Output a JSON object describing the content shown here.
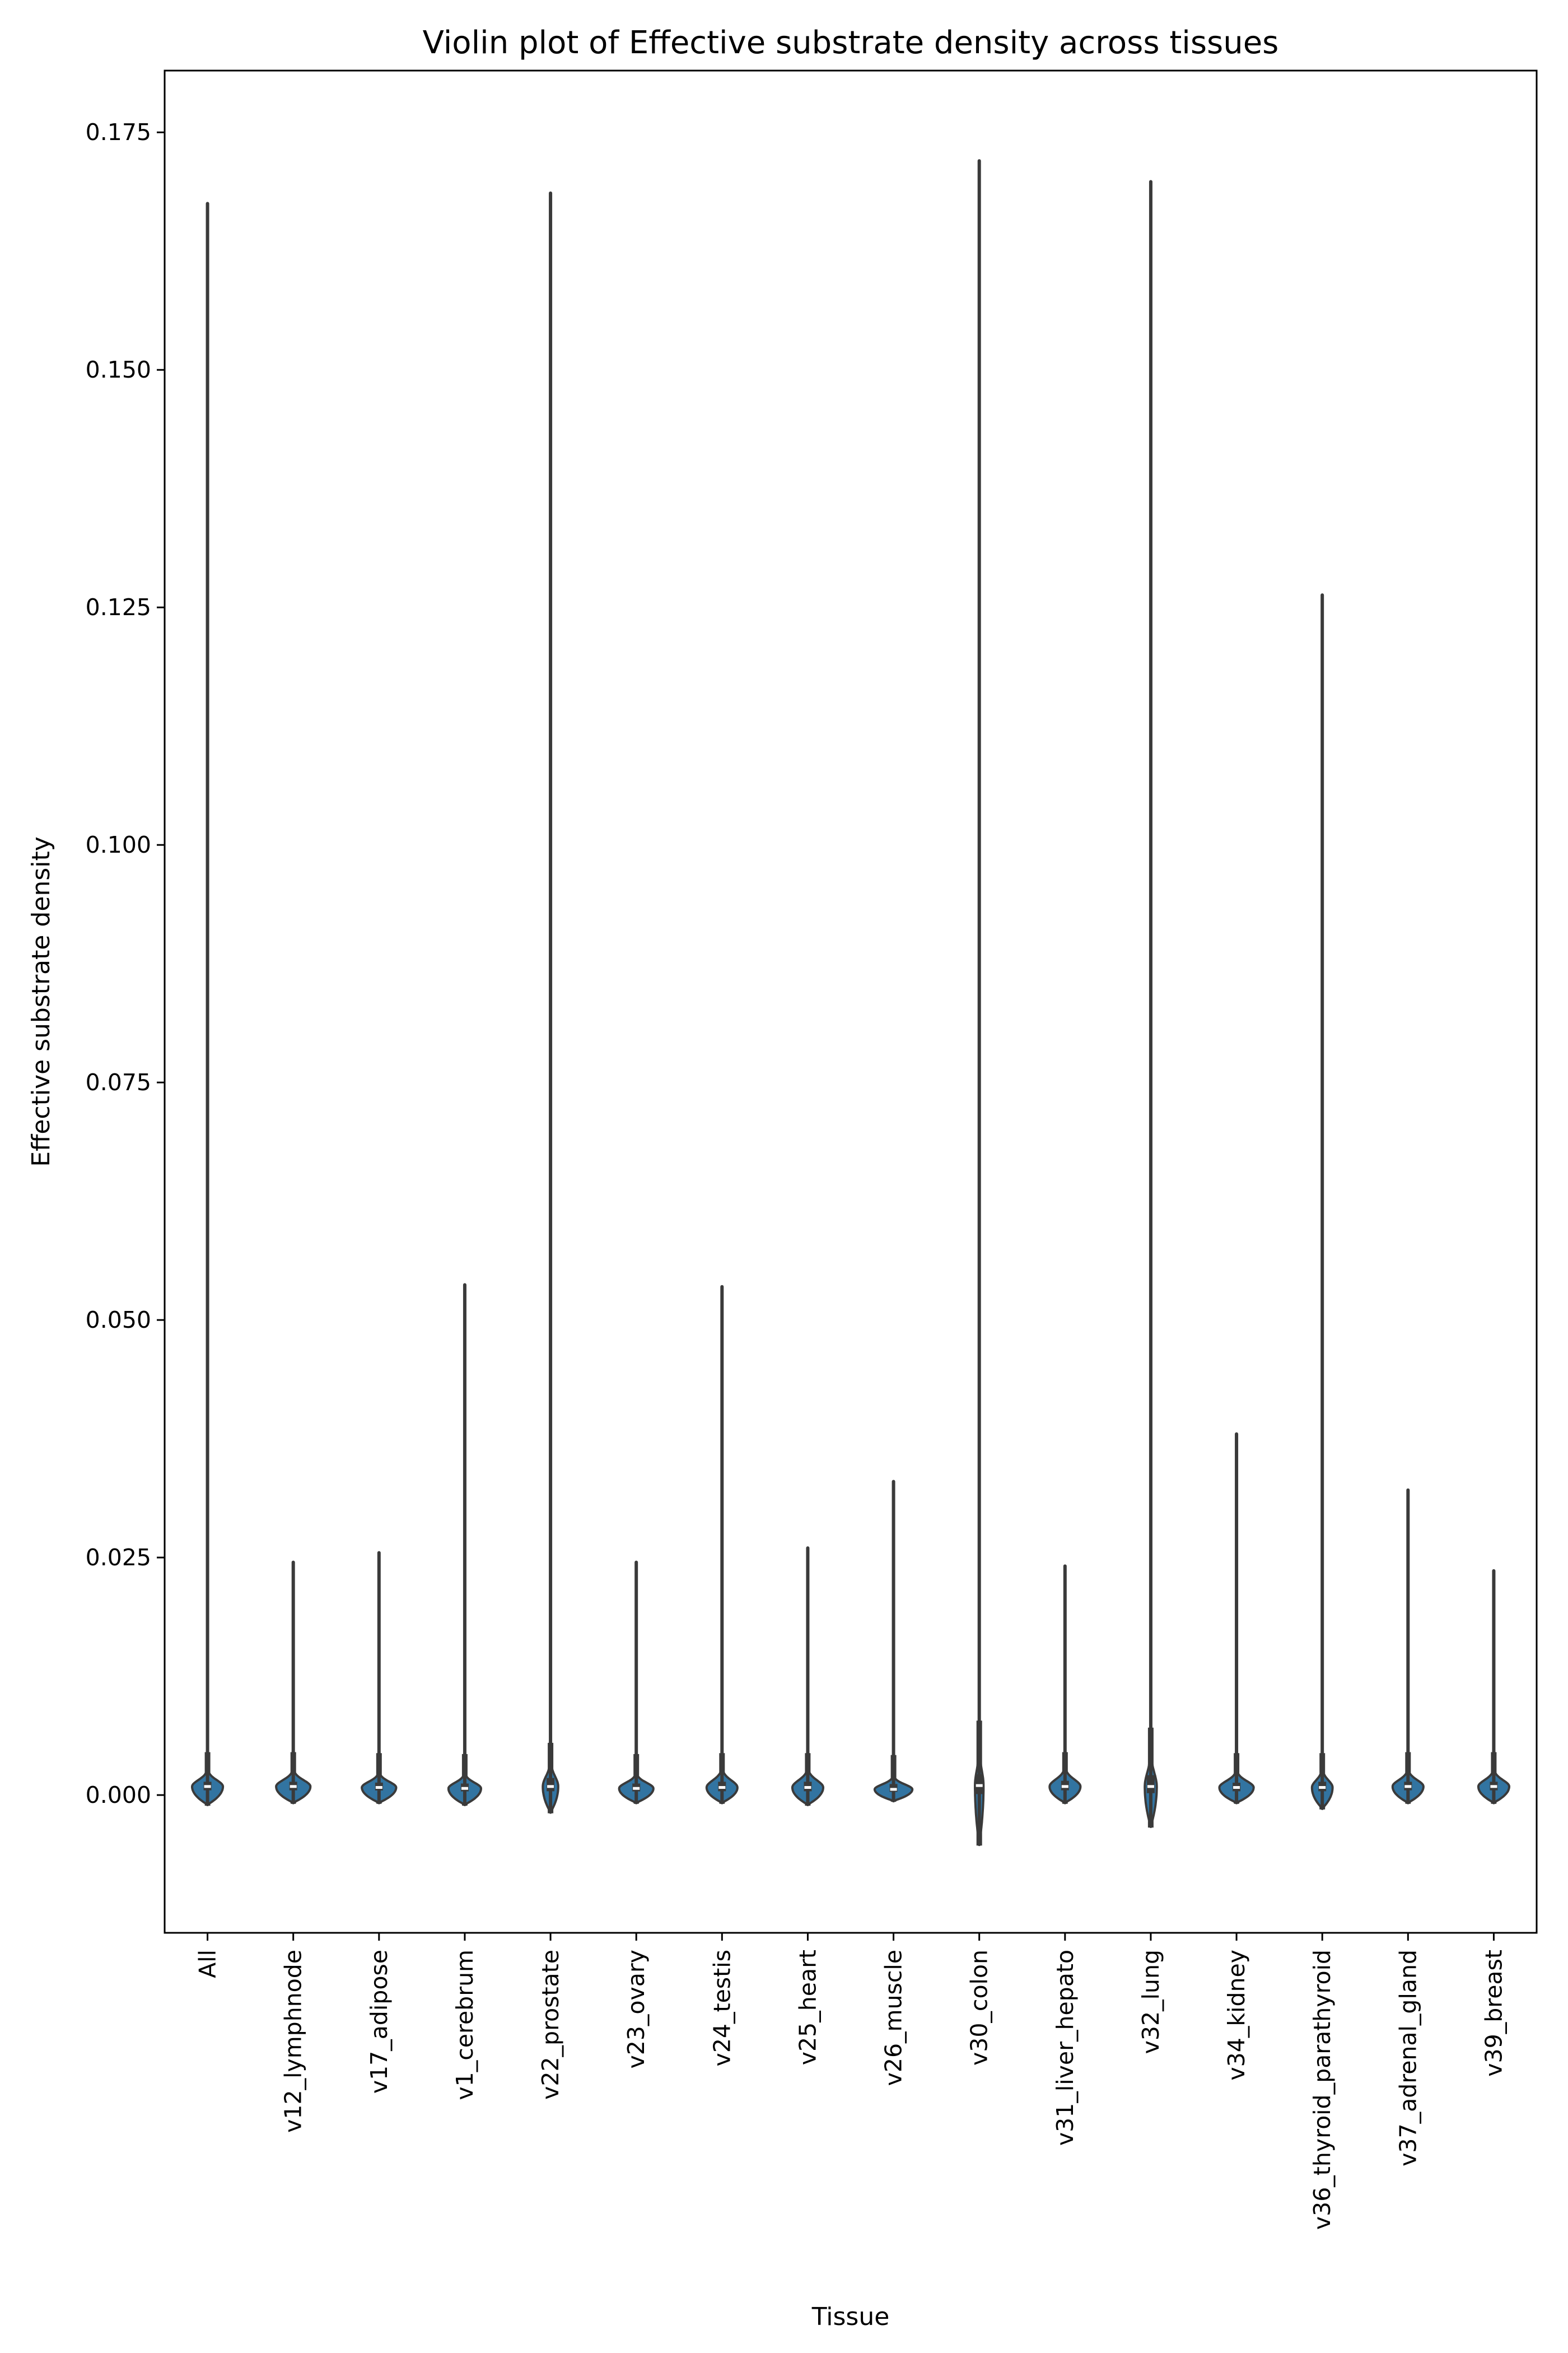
{
  "chart_data": {
    "type": "violin",
    "title": "Violin plot of Effective substrate density across tissues",
    "xlabel": "Tissue",
    "ylabel": "Effective substrate density",
    "ylim": [
      -0.0145,
      0.1815
    ],
    "y_ticks": [
      0.0,
      0.025,
      0.05,
      0.075,
      0.1,
      0.125,
      0.15,
      0.175
    ],
    "y_tick_labels": [
      "0.000",
      "0.025",
      "0.050",
      "0.075",
      "0.100",
      "0.125",
      "0.150",
      "0.175"
    ],
    "grid": false,
    "fill_color": "#3274a1",
    "line_color": "#3a3a3a",
    "categories": [
      "All",
      "v12_lymphnode",
      "v17_adipose",
      "v1_cerebrum",
      "v22_prostate",
      "v23_ovary",
      "v24_testis",
      "v25_heart",
      "v26_muscle",
      "v30_colon",
      "v31_liver_hepato",
      "v32_lung",
      "v34_kidney",
      "v36_thyroid_parathyroid",
      "v37_adrenal_gland",
      "v39_breast"
    ],
    "series": [
      {
        "category": "All",
        "min": -0.001,
        "q1": 0.0005,
        "median": 0.0009,
        "q3": 0.0014,
        "max": 0.1675,
        "width": 0.36
      },
      {
        "category": "v12_lymphnode",
        "min": -0.0008,
        "q1": 0.0005,
        "median": 0.0009,
        "q3": 0.0014,
        "max": 0.0245,
        "width": 0.4
      },
      {
        "category": "v17_adipose",
        "min": -0.0008,
        "q1": 0.0005,
        "median": 0.0008,
        "q3": 0.0013,
        "max": 0.0255,
        "width": 0.4
      },
      {
        "category": "v1_cerebrum",
        "min": -0.001,
        "q1": 0.0004,
        "median": 0.0007,
        "q3": 0.0012,
        "max": 0.0537,
        "width": 0.38
      },
      {
        "category": "v22_prostate",
        "min": -0.0018,
        "q1": 0.0004,
        "median": 0.0009,
        "q3": 0.0018,
        "max": 0.1686,
        "width": 0.18
      },
      {
        "category": "v23_ovary",
        "min": -0.0008,
        "q1": 0.0004,
        "median": 0.0007,
        "q3": 0.0012,
        "max": 0.0245,
        "width": 0.4
      },
      {
        "category": "v24_testis",
        "min": -0.0008,
        "q1": 0.0004,
        "median": 0.0008,
        "q3": 0.0014,
        "max": 0.0535,
        "width": 0.36
      },
      {
        "category": "v25_heart",
        "min": -0.001,
        "q1": 0.0004,
        "median": 0.0008,
        "q3": 0.0014,
        "max": 0.026,
        "width": 0.36
      },
      {
        "category": "v26_muscle",
        "min": -0.0006,
        "q1": 0.0004,
        "median": 0.0006,
        "q3": 0.0011,
        "max": 0.033,
        "width": 0.44
      },
      {
        "category": "v30_colon",
        "min": -0.0052,
        "q1": 0.0001,
        "median": 0.001,
        "q3": 0.0022,
        "max": 0.172,
        "width": 0.1
      },
      {
        "category": "v31_liver_hepato",
        "min": -0.0008,
        "q1": 0.0005,
        "median": 0.0009,
        "q3": 0.0015,
        "max": 0.0241,
        "width": 0.36
      },
      {
        "category": "v32_lung",
        "min": -0.0033,
        "q1": 0.0002,
        "median": 0.0009,
        "q3": 0.0021,
        "max": 0.1698,
        "width": 0.14
      },
      {
        "category": "v34_kidney",
        "min": -0.0008,
        "q1": 0.0004,
        "median": 0.0008,
        "q3": 0.0013,
        "max": 0.038,
        "width": 0.4
      },
      {
        "category": "v36_thyroid_parathyroid",
        "min": -0.0014,
        "q1": 0.0004,
        "median": 0.0008,
        "q3": 0.0014,
        "max": 0.1263,
        "width": 0.24
      },
      {
        "category": "v37_adrenal_gland",
        "min": -0.0008,
        "q1": 0.0005,
        "median": 0.0009,
        "q3": 0.0014,
        "max": 0.0321,
        "width": 0.36
      },
      {
        "category": "v39_breast",
        "min": -0.0008,
        "q1": 0.0005,
        "median": 0.0009,
        "q3": 0.0014,
        "max": 0.0236,
        "width": 0.36
      }
    ]
  }
}
